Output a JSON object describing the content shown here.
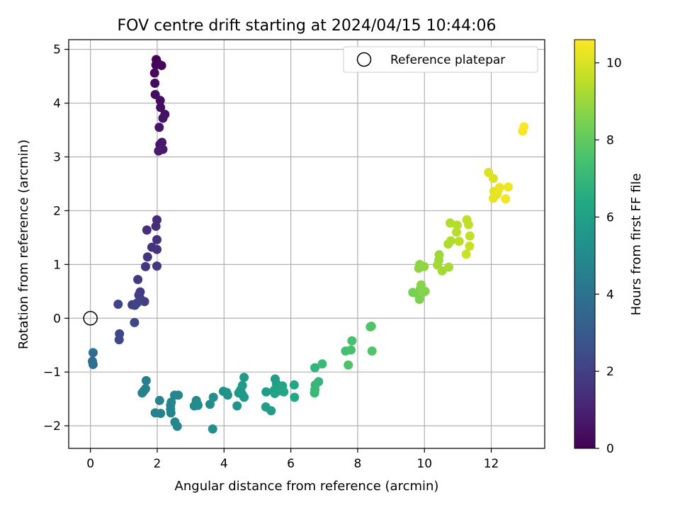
{
  "chart_data": {
    "type": "scatter",
    "title": "FOV centre drift starting at 2024/04/15 10:44:06",
    "xlabel": "Angular distance from reference (arcmin)",
    "ylabel": "Rotation from reference (arcmin)",
    "xlim": [
      -0.65,
      13.6
    ],
    "ylim": [
      -2.42,
      5.18
    ],
    "xticks": [
      0,
      2,
      4,
      6,
      8,
      10,
      12
    ],
    "yticks": [
      -2,
      -1,
      0,
      1,
      2,
      3,
      4,
      5
    ],
    "grid": true,
    "legend": {
      "position": "top-right",
      "entries": [
        "Reference platepar"
      ]
    },
    "reference_point": {
      "x": 0,
      "y": 0,
      "label": "Reference platepar"
    },
    "colorbar": {
      "label": "Hours from first FF file",
      "colormap": "viridis",
      "range": [
        0,
        10.6
      ],
      "ticks": [
        0,
        2,
        4,
        6,
        8,
        10
      ]
    },
    "series": [
      {
        "color_by": "hours",
        "points": [
          {
            "x": 1.97,
            "y": 4.81,
            "h": 0.05
          },
          {
            "x": 1.99,
            "y": 4.77,
            "h": 0.1
          },
          {
            "x": 1.96,
            "y": 4.71,
            "h": 0.15
          },
          {
            "x": 2.13,
            "y": 4.7,
            "h": 0.2
          },
          {
            "x": 1.92,
            "y": 4.56,
            "h": 0.25
          },
          {
            "x": 1.93,
            "y": 4.37,
            "h": 0.3
          },
          {
            "x": 1.94,
            "y": 4.16,
            "h": 0.35
          },
          {
            "x": 2.09,
            "y": 4.05,
            "h": 0.4
          },
          {
            "x": 2.1,
            "y": 3.92,
            "h": 0.45
          },
          {
            "x": 2.23,
            "y": 3.79,
            "h": 0.5
          },
          {
            "x": 2.17,
            "y": 3.72,
            "h": 0.55
          },
          {
            "x": 2.06,
            "y": 3.55,
            "h": 0.6
          },
          {
            "x": 2.14,
            "y": 3.27,
            "h": 0.65
          },
          {
            "x": 2.08,
            "y": 3.23,
            "h": 0.7
          },
          {
            "x": 2.17,
            "y": 3.14,
            "h": 0.75
          },
          {
            "x": 2.04,
            "y": 3.11,
            "h": 0.8
          },
          {
            "x": 1.99,
            "y": 1.83,
            "h": 1.3
          },
          {
            "x": 1.96,
            "y": 1.71,
            "h": 1.35
          },
          {
            "x": 1.69,
            "y": 1.64,
            "h": 1.4
          },
          {
            "x": 1.99,
            "y": 1.46,
            "h": 1.45
          },
          {
            "x": 1.84,
            "y": 1.32,
            "h": 1.5
          },
          {
            "x": 1.99,
            "y": 1.28,
            "h": 1.55
          },
          {
            "x": 1.71,
            "y": 1.14,
            "h": 1.6
          },
          {
            "x": 1.65,
            "y": 0.96,
            "h": 1.65
          },
          {
            "x": 1.99,
            "y": 0.97,
            "h": 1.7
          },
          {
            "x": 1.42,
            "y": 0.72,
            "h": 1.75
          },
          {
            "x": 1.49,
            "y": 0.49,
            "h": 1.8
          },
          {
            "x": 1.45,
            "y": 0.43,
            "h": 1.85
          },
          {
            "x": 1.49,
            "y": 0.37,
            "h": 1.9
          },
          {
            "x": 1.62,
            "y": 0.31,
            "h": 1.95
          },
          {
            "x": 1.25,
            "y": 0.25,
            "h": 2.0
          },
          {
            "x": 1.33,
            "y": 0.24,
            "h": 2.05
          },
          {
            "x": 1.39,
            "y": 0.28,
            "h": 2.1
          },
          {
            "x": 0.83,
            "y": 0.26,
            "h": 2.15
          },
          {
            "x": 1.32,
            "y": -0.08,
            "h": 2.2
          },
          {
            "x": 0.87,
            "y": -0.29,
            "h": 2.25
          },
          {
            "x": 0.86,
            "y": -0.4,
            "h": 2.3
          },
          {
            "x": 0.08,
            "y": -0.64,
            "h": 3.8
          },
          {
            "x": 0.06,
            "y": -0.8,
            "h": 3.85
          },
          {
            "x": 0.08,
            "y": -0.86,
            "h": 3.9
          },
          {
            "x": 1.67,
            "y": -1.16,
            "h": 4.6
          },
          {
            "x": 1.65,
            "y": -1.31,
            "h": 4.62
          },
          {
            "x": 1.6,
            "y": -1.35,
            "h": 4.64
          },
          {
            "x": 1.55,
            "y": -1.39,
            "h": 4.66
          },
          {
            "x": 2.07,
            "y": -1.53,
            "h": 4.68
          },
          {
            "x": 1.94,
            "y": -1.76,
            "h": 4.7
          },
          {
            "x": 2.1,
            "y": -1.77,
            "h": 4.72
          },
          {
            "x": 2.42,
            "y": -1.56,
            "h": 4.74
          },
          {
            "x": 2.4,
            "y": -1.62,
            "h": 4.76
          },
          {
            "x": 2.4,
            "y": -1.69,
            "h": 4.78
          },
          {
            "x": 2.41,
            "y": -1.76,
            "h": 4.8
          },
          {
            "x": 2.52,
            "y": -1.43,
            "h": 4.82
          },
          {
            "x": 2.63,
            "y": -1.43,
            "h": 4.84
          },
          {
            "x": 2.53,
            "y": -1.93,
            "h": 4.86
          },
          {
            "x": 2.6,
            "y": -2.01,
            "h": 4.88
          },
          {
            "x": 3.17,
            "y": -1.53,
            "h": 4.95
          },
          {
            "x": 3.21,
            "y": -1.6,
            "h": 5.0
          },
          {
            "x": 3.11,
            "y": -1.63,
            "h": 5.05
          },
          {
            "x": 3.22,
            "y": -1.62,
            "h": 5.1
          },
          {
            "x": 3.58,
            "y": -1.6,
            "h": 5.15
          },
          {
            "x": 3.68,
            "y": -1.47,
            "h": 5.2
          },
          {
            "x": 3.66,
            "y": -2.06,
            "h": 5.25
          },
          {
            "x": 3.98,
            "y": -1.36,
            "h": 5.3
          },
          {
            "x": 4.08,
            "y": -1.38,
            "h": 5.35
          },
          {
            "x": 4.11,
            "y": -1.43,
            "h": 5.4
          },
          {
            "x": 4.39,
            "y": -1.63,
            "h": 5.45
          },
          {
            "x": 4.44,
            "y": -1.39,
            "h": 5.5
          },
          {
            "x": 4.5,
            "y": -1.33,
            "h": 5.55
          },
          {
            "x": 4.55,
            "y": -1.42,
            "h": 5.6
          },
          {
            "x": 4.6,
            "y": -1.47,
            "h": 5.65
          },
          {
            "x": 4.6,
            "y": -1.1,
            "h": 5.7
          },
          {
            "x": 4.55,
            "y": -1.25,
            "h": 5.75
          },
          {
            "x": 5.26,
            "y": -1.37,
            "h": 5.8
          },
          {
            "x": 5.25,
            "y": -1.65,
            "h": 5.85
          },
          {
            "x": 5.41,
            "y": -1.72,
            "h": 5.9
          },
          {
            "x": 5.53,
            "y": -1.13,
            "h": 5.95
          },
          {
            "x": 5.57,
            "y": -1.22,
            "h": 6.0
          },
          {
            "x": 5.5,
            "y": -1.34,
            "h": 6.05
          },
          {
            "x": 5.52,
            "y": -1.4,
            "h": 6.1
          },
          {
            "x": 5.63,
            "y": -1.35,
            "h": 6.15
          },
          {
            "x": 5.75,
            "y": -1.26,
            "h": 6.2
          },
          {
            "x": 5.79,
            "y": -1.37,
            "h": 6.25
          },
          {
            "x": 6.1,
            "y": -1.24,
            "h": 6.3
          },
          {
            "x": 6.11,
            "y": -1.47,
            "h": 6.35
          },
          {
            "x": 6.72,
            "y": -0.92,
            "h": 6.9
          },
          {
            "x": 6.83,
            "y": -1.18,
            "h": 6.95
          },
          {
            "x": 6.73,
            "y": -1.24,
            "h": 7.0
          },
          {
            "x": 6.72,
            "y": -1.33,
            "h": 7.05
          },
          {
            "x": 6.71,
            "y": -1.39,
            "h": 7.1
          },
          {
            "x": 6.94,
            "y": -0.85,
            "h": 7.15
          },
          {
            "x": 7.64,
            "y": -0.61,
            "h": 7.4
          },
          {
            "x": 7.8,
            "y": -0.59,
            "h": 7.45
          },
          {
            "x": 7.83,
            "y": -0.42,
            "h": 7.5
          },
          {
            "x": 7.72,
            "y": -0.87,
            "h": 7.55
          },
          {
            "x": 8.41,
            "y": -0.15,
            "h": 7.6
          },
          {
            "x": 8.38,
            "y": -0.16,
            "h": 7.65
          },
          {
            "x": 8.43,
            "y": -0.61,
            "h": 7.7
          },
          {
            "x": 9.65,
            "y": 0.48,
            "h": 8.4
          },
          {
            "x": 9.8,
            "y": 0.45,
            "h": 8.45
          },
          {
            "x": 9.85,
            "y": 0.35,
            "h": 8.5
          },
          {
            "x": 9.88,
            "y": 0.55,
            "h": 8.55
          },
          {
            "x": 9.93,
            "y": 0.47,
            "h": 8.6
          },
          {
            "x": 10.02,
            "y": 0.5,
            "h": 8.65
          },
          {
            "x": 9.9,
            "y": 0.62,
            "h": 8.7
          },
          {
            "x": 9.83,
            "y": 0.93,
            "h": 8.75
          },
          {
            "x": 9.86,
            "y": 1.0,
            "h": 8.8
          },
          {
            "x": 9.99,
            "y": 0.96,
            "h": 8.85
          },
          {
            "x": 10.44,
            "y": 1.18,
            "h": 9.0
          },
          {
            "x": 10.43,
            "y": 1.08,
            "h": 9.05
          },
          {
            "x": 10.39,
            "y": 0.99,
            "h": 9.1
          },
          {
            "x": 10.53,
            "y": 0.88,
            "h": 9.15
          },
          {
            "x": 10.73,
            "y": 0.95,
            "h": 9.2
          },
          {
            "x": 10.71,
            "y": 1.38,
            "h": 9.25
          },
          {
            "x": 10.79,
            "y": 1.44,
            "h": 9.3
          },
          {
            "x": 10.77,
            "y": 1.77,
            "h": 9.35
          },
          {
            "x": 10.98,
            "y": 1.73,
            "h": 9.4
          },
          {
            "x": 10.96,
            "y": 1.6,
            "h": 9.45
          },
          {
            "x": 11.04,
            "y": 1.43,
            "h": 9.5
          },
          {
            "x": 11.27,
            "y": 1.83,
            "h": 9.55
          },
          {
            "x": 11.32,
            "y": 1.74,
            "h": 9.6
          },
          {
            "x": 11.36,
            "y": 1.53,
            "h": 9.65
          },
          {
            "x": 11.35,
            "y": 1.34,
            "h": 9.7
          },
          {
            "x": 11.25,
            "y": 1.19,
            "h": 9.75
          },
          {
            "x": 11.92,
            "y": 2.71,
            "h": 10.0
          },
          {
            "x": 12.06,
            "y": 2.6,
            "h": 10.05
          },
          {
            "x": 12.08,
            "y": 2.36,
            "h": 10.1
          },
          {
            "x": 12.21,
            "y": 2.38,
            "h": 10.15
          },
          {
            "x": 12.06,
            "y": 2.23,
            "h": 10.2
          },
          {
            "x": 12.17,
            "y": 2.3,
            "h": 10.25
          },
          {
            "x": 12.25,
            "y": 2.43,
            "h": 10.3
          },
          {
            "x": 12.51,
            "y": 2.44,
            "h": 10.35
          },
          {
            "x": 12.43,
            "y": 2.22,
            "h": 10.4
          },
          {
            "x": 12.94,
            "y": 3.48,
            "h": 10.5
          },
          {
            "x": 12.98,
            "y": 3.56,
            "h": 10.55
          }
        ]
      }
    ]
  }
}
